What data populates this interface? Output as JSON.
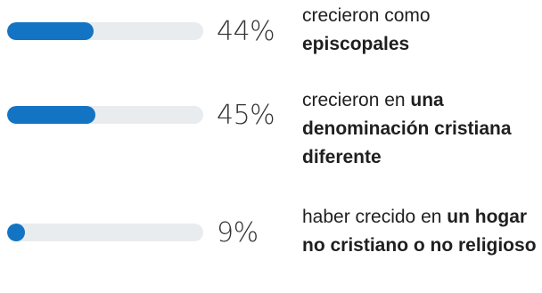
{
  "chart_data": {
    "type": "bar",
    "orientation": "horizontal",
    "bar_color": "#1374c4",
    "track_color": "#e9ecef",
    "xlim": [
      0,
      100
    ],
    "items": [
      {
        "value": 44,
        "value_label": "44%",
        "label_normal": "crecieron como ",
        "label_bold": "episcopales",
        "label_after": ""
      },
      {
        "value": 45,
        "value_label": "45%",
        "label_normal": "crecieron en ",
        "label_bold": "una denominación cristiana diferente",
        "label_after": ""
      },
      {
        "value": 9,
        "value_label": "9%",
        "label_normal": "haber crecido en ",
        "label_bold": "un hogar no cristiano o no religioso",
        "label_after": ""
      }
    ]
  }
}
